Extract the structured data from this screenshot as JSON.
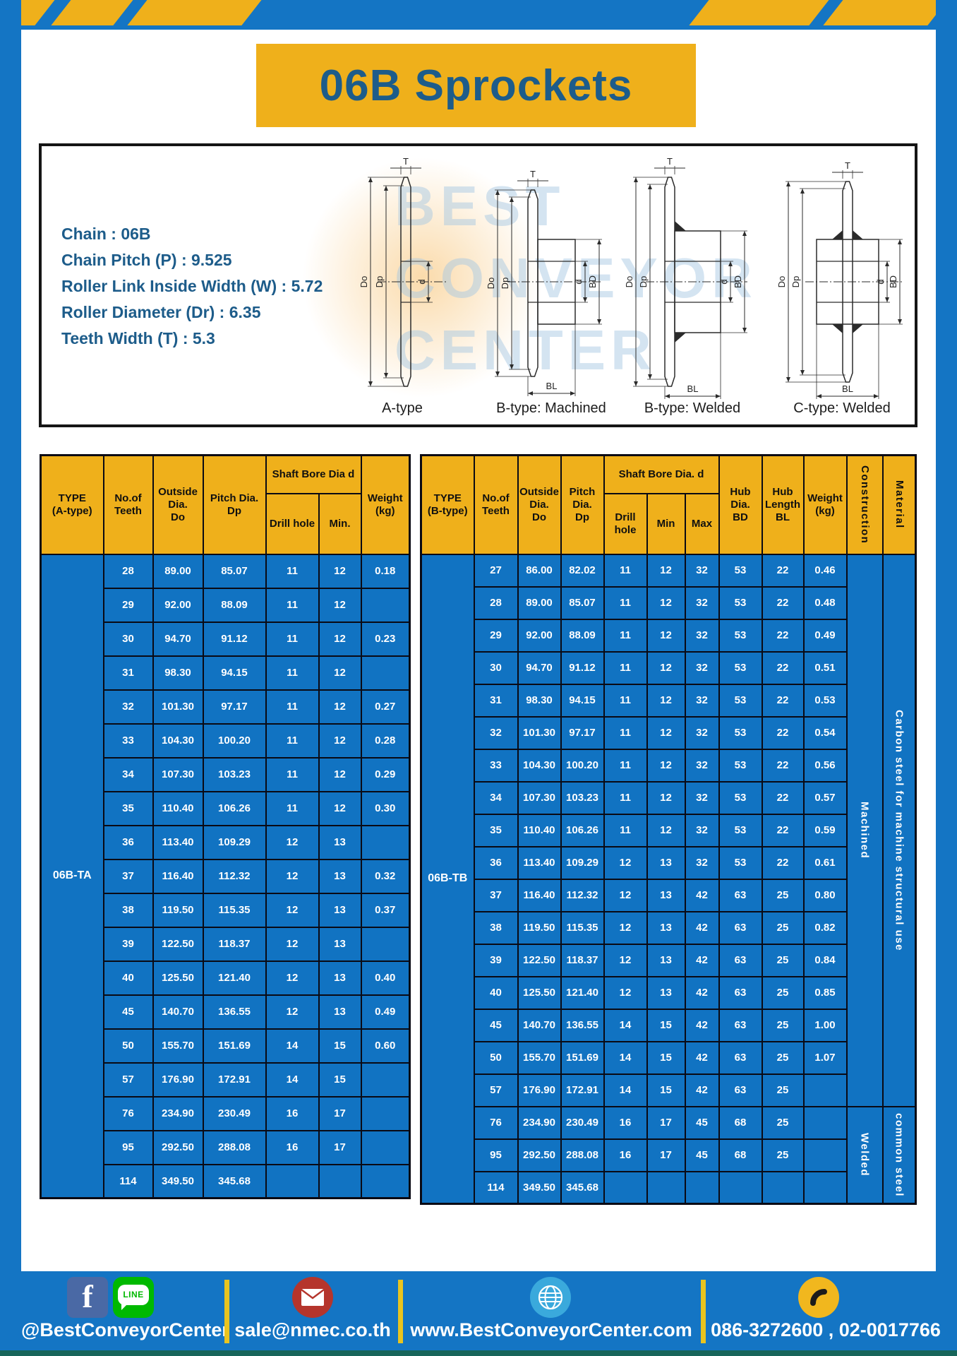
{
  "page": {
    "title": "06B Sprockets"
  },
  "specs": {
    "lines": [
      "Chain  : 06B",
      "Chain Pitch (P)  :  9.525",
      "Roller Link Inside Width (W)  :  5.72",
      "Roller Diameter (Dr)  : 6.35",
      "Teeth Width (T)  :  5.3"
    ]
  },
  "diagrams": {
    "captions": [
      "A-type",
      "B-type: Machined",
      "B-type: Welded",
      "C-type: Welded"
    ],
    "dim_labels": {
      "t": "T",
      "do": "Do",
      "dp": "Dp",
      "d": "d",
      "bd": "BD",
      "bl": "BL"
    },
    "watermark_words": [
      "BEST",
      "CONVEYOR",
      "CENTER"
    ]
  },
  "table_a": {
    "name": "sprocket-table-a-type",
    "type_label": "06B-TA",
    "header_rows": [
      [
        {
          "t": "TYPE\n(A-type)",
          "rs": 2
        },
        {
          "t": "No.of\nTeeth",
          "rs": 2
        },
        {
          "t": "Outside\nDia.\nDo",
          "rs": 2
        },
        {
          "t": "Pitch Dia.\nDp",
          "rs": 2
        },
        {
          "t": "Shaft Bore Dia d",
          "cs": 2
        },
        {
          "t": "Weight\n(kg)",
          "rs": 2
        }
      ],
      [
        {
          "t": "Drill hole"
        },
        {
          "t": "Min."
        }
      ]
    ],
    "rows": [
      [
        "28",
        "89.00",
        "85.07",
        "11",
        "12",
        "0.18"
      ],
      [
        "29",
        "92.00",
        "88.09",
        "11",
        "12",
        ""
      ],
      [
        "30",
        "94.70",
        "91.12",
        "11",
        "12",
        "0.23"
      ],
      [
        "31",
        "98.30",
        "94.15",
        "11",
        "12",
        ""
      ],
      [
        "32",
        "101.30",
        "97.17",
        "11",
        "12",
        "0.27"
      ],
      [
        "33",
        "104.30",
        "100.20",
        "11",
        "12",
        "0.28"
      ],
      [
        "34",
        "107.30",
        "103.23",
        "11",
        "12",
        "0.29"
      ],
      [
        "35",
        "110.40",
        "106.26",
        "11",
        "12",
        "0.30"
      ],
      [
        "36",
        "113.40",
        "109.29",
        "12",
        "13",
        ""
      ],
      [
        "37",
        "116.40",
        "112.32",
        "12",
        "13",
        "0.32"
      ],
      [
        "38",
        "119.50",
        "115.35",
        "12",
        "13",
        "0.37"
      ],
      [
        "39",
        "122.50",
        "118.37",
        "12",
        "13",
        ""
      ],
      [
        "40",
        "125.50",
        "121.40",
        "12",
        "13",
        "0.40"
      ],
      [
        "45",
        "140.70",
        "136.55",
        "12",
        "13",
        "0.49"
      ],
      [
        "50",
        "155.70",
        "151.69",
        "14",
        "15",
        "0.60"
      ],
      [
        "57",
        "176.90",
        "172.91",
        "14",
        "15",
        ""
      ],
      [
        "76",
        "234.90",
        "230.49",
        "16",
        "17",
        ""
      ],
      [
        "95",
        "292.50",
        "288.08",
        "16",
        "17",
        ""
      ],
      [
        "114",
        "349.50",
        "345.68",
        "",
        "",
        ""
      ]
    ]
  },
  "table_b": {
    "name": "sprocket-table-b-type",
    "type_label": "06B-TB",
    "header_rows": [
      [
        {
          "t": "TYPE\n(B-type)",
          "rs": 2
        },
        {
          "t": "No.of\nTeeth",
          "rs": 2
        },
        {
          "t": "Outside\nDia.\nDo",
          "rs": 2
        },
        {
          "t": "Pitch\nDia.\nDp",
          "rs": 2
        },
        {
          "t": "Shaft Bore Dia.  d",
          "cs": 3
        },
        {
          "t": "Hub\nDia.\nBD",
          "rs": 2
        },
        {
          "t": "Hub\nLength\nBL",
          "rs": 2
        },
        {
          "t": "Weight\n(kg)",
          "rs": 2
        },
        {
          "t": "Construction",
          "rs": 2,
          "v": true
        },
        {
          "t": "Material",
          "rs": 2,
          "v": true
        }
      ],
      [
        {
          "t": "Drill hole"
        },
        {
          "t": "Min"
        },
        {
          "t": "Max"
        }
      ]
    ],
    "rows": [
      [
        "27",
        "86.00",
        "82.02",
        "11",
        "12",
        "32",
        "53",
        "22",
        "0.46"
      ],
      [
        "28",
        "89.00",
        "85.07",
        "11",
        "12",
        "32",
        "53",
        "22",
        "0.48"
      ],
      [
        "29",
        "92.00",
        "88.09",
        "11",
        "12",
        "32",
        "53",
        "22",
        "0.49"
      ],
      [
        "30",
        "94.70",
        "91.12",
        "11",
        "12",
        "32",
        "53",
        "22",
        "0.51"
      ],
      [
        "31",
        "98.30",
        "94.15",
        "11",
        "12",
        "32",
        "53",
        "22",
        "0.53"
      ],
      [
        "32",
        "101.30",
        "97.17",
        "11",
        "12",
        "32",
        "53",
        "22",
        "0.54"
      ],
      [
        "33",
        "104.30",
        "100.20",
        "11",
        "12",
        "32",
        "53",
        "22",
        "0.56"
      ],
      [
        "34",
        "107.30",
        "103.23",
        "11",
        "12",
        "32",
        "53",
        "22",
        "0.57"
      ],
      [
        "35",
        "110.40",
        "106.26",
        "11",
        "12",
        "32",
        "53",
        "22",
        "0.59"
      ],
      [
        "36",
        "113.40",
        "109.29",
        "12",
        "13",
        "32",
        "53",
        "22",
        "0.61"
      ],
      [
        "37",
        "116.40",
        "112.32",
        "12",
        "13",
        "42",
        "63",
        "25",
        "0.80"
      ],
      [
        "38",
        "119.50",
        "115.35",
        "12",
        "13",
        "42",
        "63",
        "25",
        "0.82"
      ],
      [
        "39",
        "122.50",
        "118.37",
        "12",
        "13",
        "42",
        "63",
        "25",
        "0.84"
      ],
      [
        "40",
        "125.50",
        "121.40",
        "12",
        "13",
        "42",
        "63",
        "25",
        "0.85"
      ],
      [
        "45",
        "140.70",
        "136.55",
        "14",
        "15",
        "42",
        "63",
        "25",
        "1.00"
      ],
      [
        "50",
        "155.70",
        "151.69",
        "14",
        "15",
        "42",
        "63",
        "25",
        "1.07"
      ],
      [
        "57",
        "176.90",
        "172.91",
        "14",
        "15",
        "42",
        "63",
        "25",
        ""
      ],
      [
        "76",
        "234.90",
        "230.49",
        "16",
        "17",
        "45",
        "68",
        "25",
        ""
      ],
      [
        "95",
        "292.50",
        "288.08",
        "16",
        "17",
        "45",
        "68",
        "25",
        ""
      ],
      [
        "114",
        "349.50",
        "345.68",
        "",
        "",
        "",
        "",
        "",
        ""
      ]
    ],
    "row_groups": [
      {
        "count": 17,
        "construction": "Machined",
        "material": "Carbon steel for machine structural use"
      },
      {
        "count": 3,
        "construction": "Welded",
        "material": "common steel"
      }
    ]
  },
  "footer": {
    "social_handle": "@BestConveyorCenter",
    "email": "sale@nmec.co.th",
    "website": "www.BestConveyorCenter.com",
    "phones": "086-3272600 , 02-0017766",
    "facebook_glyph": "f",
    "line_label": "LINE"
  },
  "colors": {
    "blue": "#1475C4",
    "cell_blue": "#1173C2",
    "yellow": "#EFB01B",
    "dark_text": "#1D5C8A",
    "table_border": "#0A0A14"
  }
}
